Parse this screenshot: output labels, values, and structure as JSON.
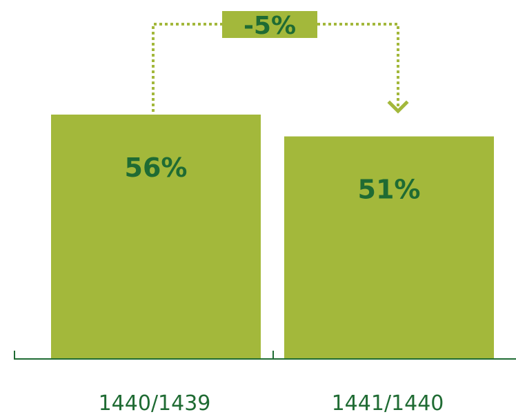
{
  "chart_data": {
    "type": "bar",
    "categories": [
      "1440/1439",
      "1441/1440"
    ],
    "values": [
      56,
      51
    ],
    "value_labels": [
      "56%",
      "51%"
    ],
    "change_label": "-5%",
    "title": "",
    "xlabel": "",
    "ylabel": "",
    "ylim": [
      0,
      56
    ],
    "grid": false,
    "legend": "none"
  },
  "colors": {
    "bar": "#a3b83b",
    "value_text": "#1f6b33",
    "axis": "#1f6b33",
    "tick_text": "#1f6b33",
    "connector": "#a3b83b",
    "change_box": "#a3b83b",
    "change_text": "#1f6b33"
  }
}
